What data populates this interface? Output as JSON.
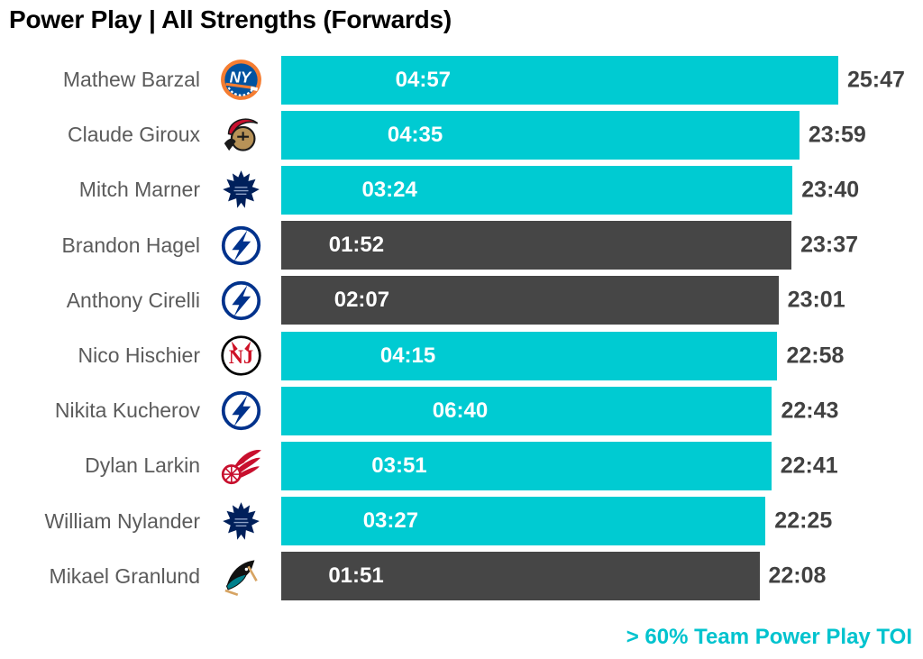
{
  "colors": {
    "highlight_bar": "#00cbd2",
    "regular_bar": "#464646",
    "legend_text": "#00c3ce",
    "player_name_text": "#5b5b5b",
    "total_text": "#414141",
    "bar_label_text": "#ffffff",
    "title_text": "#000000"
  },
  "chart_data": {
    "type": "bar",
    "orientation": "horizontal",
    "title": "Power Play | All Strengths (Forwards)",
    "legend_label": "> 60% Team Power Play TOI",
    "legend_position": "bottom-right",
    "grid": false,
    "xlim_minutes": [
      0,
      25.783
    ],
    "bars": [
      {
        "player": "Mathew Barzal",
        "team_logo": "islanders-logo",
        "pp_toi": "04:57",
        "total_toi": "25:47",
        "highlighted": true
      },
      {
        "player": "Claude Giroux",
        "team_logo": "senators-logo",
        "pp_toi": "04:35",
        "total_toi": "23:59",
        "highlighted": true
      },
      {
        "player": "Mitch Marner",
        "team_logo": "maple-leafs-logo",
        "pp_toi": "03:24",
        "total_toi": "23:40",
        "highlighted": true
      },
      {
        "player": "Brandon Hagel",
        "team_logo": "lightning-logo",
        "pp_toi": "01:52",
        "total_toi": "23:37",
        "highlighted": false
      },
      {
        "player": "Anthony Cirelli",
        "team_logo": "lightning-logo",
        "pp_toi": "02:07",
        "total_toi": "23:01",
        "highlighted": false
      },
      {
        "player": "Nico Hischier",
        "team_logo": "devils-logo",
        "pp_toi": "04:15",
        "total_toi": "22:58",
        "highlighted": true
      },
      {
        "player": "Nikita Kucherov",
        "team_logo": "lightning-logo",
        "pp_toi": "06:40",
        "total_toi": "22:43",
        "highlighted": true
      },
      {
        "player": "Dylan Larkin",
        "team_logo": "red-wings-logo",
        "pp_toi": "03:51",
        "total_toi": "22:41",
        "highlighted": true
      },
      {
        "player": "William Nylander",
        "team_logo": "maple-leafs-logo",
        "pp_toi": "03:27",
        "total_toi": "22:25",
        "highlighted": true
      },
      {
        "player": "Mikael Granlund",
        "team_logo": "sharks-logo",
        "pp_toi": "01:51",
        "total_toi": "22:08",
        "highlighted": false
      }
    ]
  }
}
